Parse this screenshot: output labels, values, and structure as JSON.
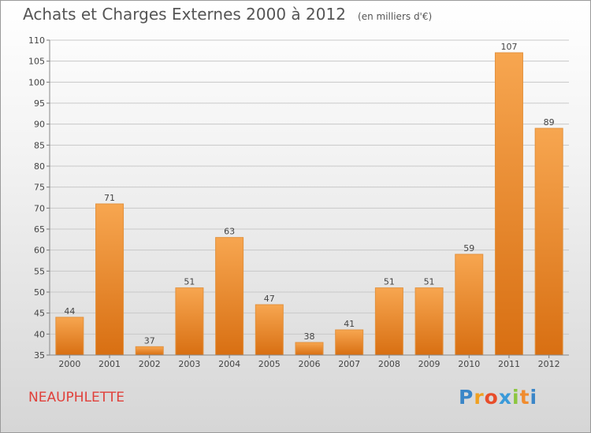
{
  "chart_data": {
    "type": "bar",
    "title": "Achats et Charges Externes 2000 à 2012",
    "subtitle": "(en milliers d'€)",
    "categories": [
      "2000",
      "2001",
      "2002",
      "2003",
      "2004",
      "2005",
      "2006",
      "2007",
      "2008",
      "2009",
      "2010",
      "2011",
      "2012"
    ],
    "values": [
      44,
      71,
      37,
      51,
      63,
      47,
      38,
      41,
      51,
      51,
      59,
      107,
      89
    ],
    "ylim": [
      35,
      110
    ],
    "yticks": [
      35,
      40,
      45,
      50,
      55,
      60,
      65,
      70,
      75,
      80,
      85,
      90,
      95,
      100,
      105,
      110
    ],
    "xlabel": "",
    "ylabel": "",
    "grid": true,
    "bar_color": "#f08c2e"
  },
  "commune": "NEAUPHLETTE",
  "logo": {
    "text": "Proxiti",
    "letters": [
      "P",
      "r",
      "o",
      "x",
      "i",
      "t",
      "i"
    ],
    "colors": [
      "#3a86c8",
      "#f0a020",
      "#e84d2a",
      "#3a9ad9",
      "#8cc63f",
      "#f08c2e",
      "#3a86c8"
    ]
  }
}
